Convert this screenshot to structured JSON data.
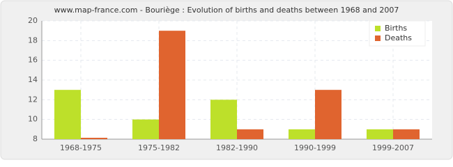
{
  "chart_data": {
    "type": "bar",
    "title": "www.map-france.com - Bouriège : Evolution of births and deaths between 1968 and 2007",
    "categories": [
      "1968-1975",
      "1975-1982",
      "1982-1990",
      "1990-1999",
      "1999-2007"
    ],
    "series": [
      {
        "name": "Births",
        "color": "#bde02a",
        "values": [
          13,
          10,
          12,
          9,
          9
        ]
      },
      {
        "name": "Deaths",
        "color": "#e0642f",
        "values": [
          8,
          19,
          9,
          13,
          9
        ]
      }
    ],
    "ylim": [
      8,
      20
    ],
    "yticks": [
      8,
      10,
      12,
      14,
      16,
      18,
      20
    ],
    "grid": true,
    "legend": "top-right"
  }
}
